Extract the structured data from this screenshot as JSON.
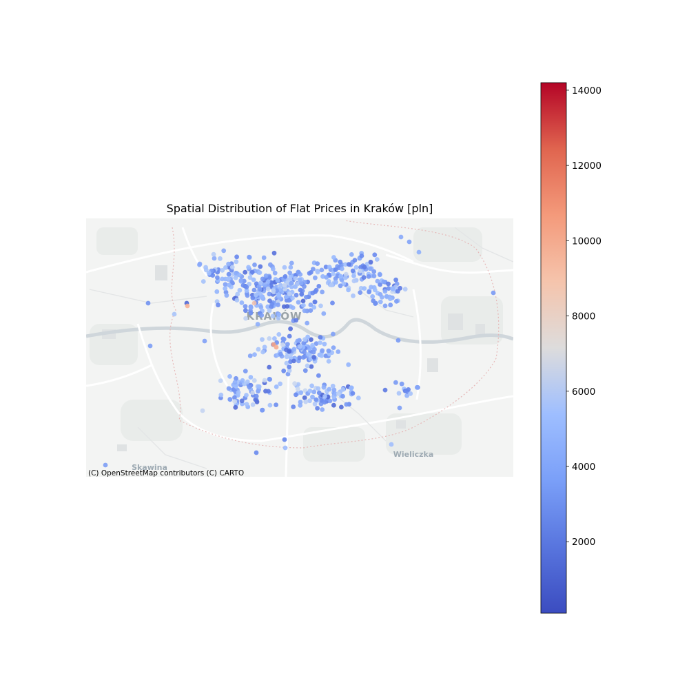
{
  "title": "Spatial Distribution of Flat Prices in Kraków [pln]",
  "attribution": "(C) OpenStreetMap contributors (C) CARTO",
  "map_labels": {
    "city": "KRAKÓW",
    "town_west": "Skawina",
    "town_east": "Wieliczka"
  },
  "colormap": {
    "name": "coolwarm",
    "min": 100,
    "max": 14200,
    "ticks": [
      2000,
      4000,
      6000,
      8000,
      10000,
      12000,
      14000
    ],
    "colors": [
      "#3b4cc0",
      "#6788ee",
      "#9abbff",
      "#c9d7f0",
      "#dddcdc",
      "#f7b89c",
      "#f4987a",
      "#e36c55",
      "#b40426"
    ]
  },
  "chart_data": {
    "type": "scatter",
    "title": "Spatial Distribution of Flat Prices in Kraków [pln]",
    "xlabel": "",
    "ylabel": "",
    "colorbar_range": [
      100,
      14200
    ],
    "colorbar_ticks": [
      2000,
      4000,
      6000,
      8000,
      10000,
      12000,
      14000
    ],
    "basemap": "CARTO light (OpenStreetMap)",
    "grid": false,
    "point_count_approx": 700,
    "typical_price_range": [
      1500,
      5000
    ],
    "notable_high_prices": [
      9000,
      10000
    ]
  }
}
